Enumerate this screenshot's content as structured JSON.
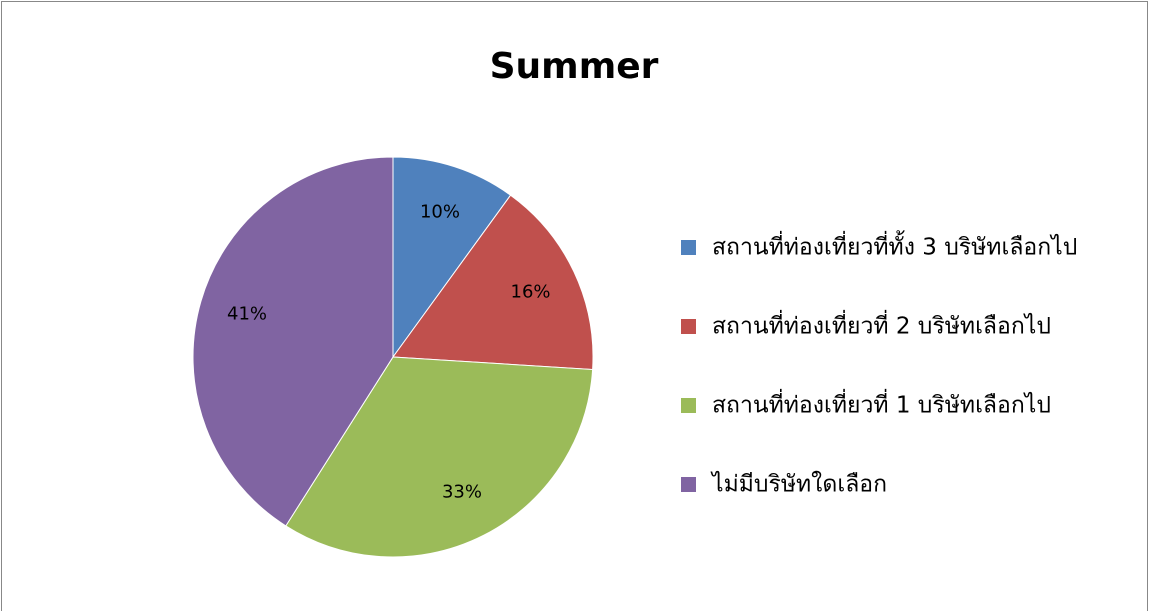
{
  "chart_data": {
    "type": "pie",
    "title": "Summer",
    "categories": [
      "สถานที่ท่องเที่ยวที่ทั้ง 3 บริษัทเลือกไป",
      "สถานที่ท่องเที่ยวที่ 2 บริษัทเลือกไป",
      "สถานที่ท่องเที่ยวที่ 1 บริษัทเลือกไป",
      "ไม่มีบริษัทใดเลือก"
    ],
    "values": [
      10,
      16,
      33,
      41
    ],
    "value_labels": [
      "10%",
      "16%",
      "33%",
      "41%"
    ],
    "colors": [
      "#4f81bd",
      "#c0504d",
      "#9bbb59",
      "#8064a2"
    ],
    "legend": "right"
  }
}
